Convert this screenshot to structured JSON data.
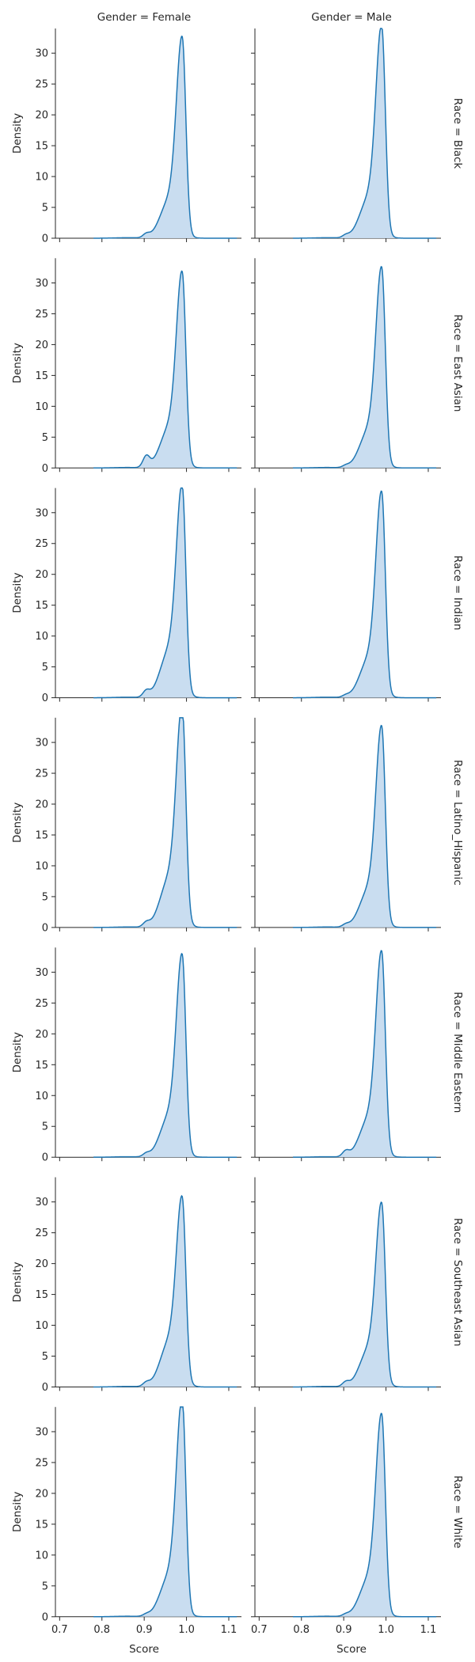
{
  "chart_data": {
    "type": "area",
    "subtype": "kde-facet-grid",
    "x_label": "Score",
    "y_label": "Density",
    "xlim": [
      0.69,
      1.13
    ],
    "ylim": [
      0,
      34
    ],
    "x_ticks": [
      0.7,
      0.8,
      0.9,
      1.0,
      1.1
    ],
    "x_tick_labels": [
      "0.7",
      "0.8",
      "0.9",
      "1.0",
      "1.1"
    ],
    "y_ticks": [
      0,
      5,
      10,
      15,
      20,
      25,
      30
    ],
    "y_tick_labels": [
      "0",
      "5",
      "10",
      "15",
      "20",
      "25",
      "30"
    ],
    "columns": [
      "Gender = Female",
      "Gender = Male"
    ],
    "rows": [
      "Race = Black",
      "Race = East Asian",
      "Race = Indian",
      "Race = Latino_Hispanic",
      "Race = Middle Eastern",
      "Race = Southeast Asian",
      "Race = White"
    ],
    "line_color": "#1f77b4",
    "fill_color": "#c6dbef",
    "panels": [
      {
        "row": 0,
        "col": 0,
        "peak_x": 0.99,
        "peak_y": 30.3,
        "shoulder": 0.2,
        "bump": 0.6
      },
      {
        "row": 0,
        "col": 1,
        "peak_x": 0.99,
        "peak_y": 32.0,
        "shoulder": 0.2,
        "bump": 0.4
      },
      {
        "row": 1,
        "col": 0,
        "peak_x": 0.99,
        "peak_y": 29.3,
        "shoulder": 0.22,
        "bump": 1.8
      },
      {
        "row": 1,
        "col": 1,
        "peak_x": 0.99,
        "peak_y": 30.2,
        "shoulder": 0.2,
        "bump": 0.3
      },
      {
        "row": 2,
        "col": 0,
        "peak_x": 0.99,
        "peak_y": 31.5,
        "shoulder": 0.24,
        "bump": 1.0
      },
      {
        "row": 2,
        "col": 1,
        "peak_x": 0.99,
        "peak_y": 31.0,
        "shoulder": 0.2,
        "bump": 0.3
      },
      {
        "row": 3,
        "col": 0,
        "peak_x": 0.99,
        "peak_y": 32.8,
        "shoulder": 0.24,
        "bump": 0.7
      },
      {
        "row": 3,
        "col": 1,
        "peak_x": 0.99,
        "peak_y": 30.3,
        "shoulder": 0.2,
        "bump": 0.4
      },
      {
        "row": 4,
        "col": 0,
        "peak_x": 0.99,
        "peak_y": 30.3,
        "shoulder": 0.22,
        "bump": 0.5
      },
      {
        "row": 4,
        "col": 1,
        "peak_x": 0.99,
        "peak_y": 31.0,
        "shoulder": 0.2,
        "bump": 0.9
      },
      {
        "row": 5,
        "col": 0,
        "peak_x": 0.99,
        "peak_y": 28.0,
        "shoulder": 0.26,
        "bump": 0.6
      },
      {
        "row": 5,
        "col": 1,
        "peak_x": 0.99,
        "peak_y": 27.5,
        "shoulder": 0.22,
        "bump": 0.7
      },
      {
        "row": 6,
        "col": 0,
        "peak_x": 0.99,
        "peak_y": 32.8,
        "shoulder": 0.2,
        "bump": 0.3
      },
      {
        "row": 6,
        "col": 1,
        "peak_x": 0.99,
        "peak_y": 30.5,
        "shoulder": 0.2,
        "bump": 0.3
      }
    ]
  }
}
